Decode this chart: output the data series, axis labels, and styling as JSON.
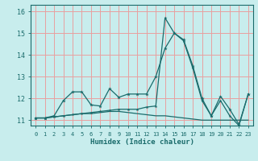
{
  "xlabel": "Humidex (Indice chaleur)",
  "bg_color": "#c8eded",
  "grid_color": "#e8a0a0",
  "line_color": "#1a6b6b",
  "xlim": [
    -0.5,
    23.5
  ],
  "ylim": [
    10.75,
    16.3
  ],
  "yticks": [
    11,
    12,
    13,
    14,
    15,
    16
  ],
  "xtick_labels": [
    "0",
    "1",
    "2",
    "3",
    "4",
    "5",
    "6",
    "7",
    "8",
    "9",
    "10",
    "11",
    "12",
    "13",
    "14",
    "15",
    "16",
    "17",
    "18",
    "19",
    "20",
    "21",
    "22",
    "23"
  ],
  "line1_x": [
    0,
    1,
    2,
    3,
    4,
    5,
    6,
    7,
    8,
    9,
    10,
    11,
    12,
    13,
    14,
    15,
    16,
    17,
    18,
    19,
    20,
    21,
    22,
    23
  ],
  "line1_y": [
    11.1,
    11.1,
    11.2,
    11.9,
    12.3,
    12.3,
    11.7,
    11.65,
    12.45,
    12.05,
    12.2,
    12.2,
    12.2,
    13.0,
    14.3,
    15.0,
    14.7,
    13.5,
    12.0,
    11.2,
    12.1,
    11.5,
    10.8,
    12.2
  ],
  "line2_x": [
    0,
    1,
    2,
    3,
    4,
    5,
    6,
    7,
    8,
    9,
    10,
    11,
    12,
    13,
    14,
    15,
    16,
    17,
    18,
    19,
    20,
    21,
    22,
    23
  ],
  "line2_y": [
    11.1,
    11.1,
    11.15,
    11.2,
    11.25,
    11.3,
    11.3,
    11.35,
    11.4,
    11.4,
    11.35,
    11.3,
    11.25,
    11.2,
    11.2,
    11.15,
    11.1,
    11.05,
    11.0,
    11.0,
    11.0,
    11.0,
    11.0,
    11.0
  ],
  "line3_x": [
    0,
    1,
    2,
    3,
    4,
    5,
    6,
    7,
    8,
    9,
    10,
    11,
    12,
    13,
    14,
    15,
    16,
    17,
    18,
    19,
    20,
    21,
    22,
    23
  ],
  "line3_y": [
    11.1,
    11.1,
    11.15,
    11.2,
    11.25,
    11.3,
    11.35,
    11.4,
    11.45,
    11.5,
    11.5,
    11.5,
    11.6,
    11.65,
    15.7,
    15.0,
    14.65,
    13.4,
    11.9,
    11.2,
    11.9,
    11.2,
    10.75,
    12.2
  ]
}
